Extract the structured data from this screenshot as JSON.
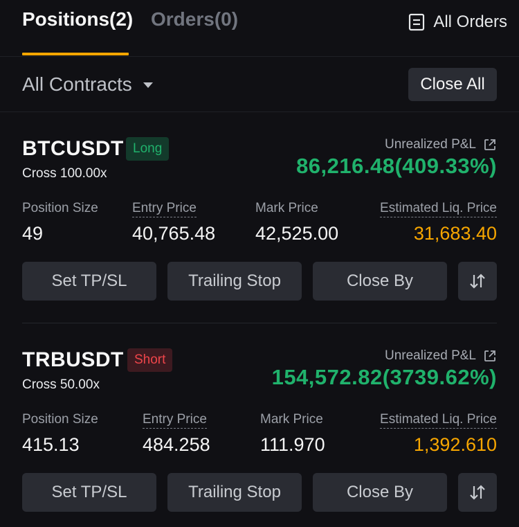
{
  "tabs": {
    "positions_label": "Positions(2)",
    "orders_label": "Orders(0)",
    "all_orders_label": "All Orders"
  },
  "filter": {
    "contracts_label": "All Contracts",
    "close_all_label": "Close All"
  },
  "labels": {
    "unrealized_pnl": "Unrealized P&L",
    "position_size": "Position Size",
    "entry_price": "Entry Price",
    "mark_price": "Mark Price",
    "est_liq_price": "Estimated Liq. Price",
    "set_tpsl": "Set TP/SL",
    "trailing_stop": "Trailing Stop",
    "close_by": "Close By"
  },
  "positions": [
    {
      "symbol": "BTCUSDT",
      "side": "Long",
      "leverage": "Cross 100.00x",
      "unrealized_pnl": "86,216.48(409.33%)",
      "position_size": "49",
      "entry_price": "40,765.48",
      "mark_price": "42,525.00",
      "liq_price": "31,683.40"
    },
    {
      "symbol": "TRBUSDT",
      "side": "Short",
      "leverage": "Cross 50.00x",
      "unrealized_pnl": "154,572.82(3739.62%)",
      "position_size": "415.13",
      "entry_price": "484.258",
      "mark_price": "111.970",
      "liq_price": "1,392.610"
    }
  ],
  "colors": {
    "accent": "#f7a600",
    "profit": "#20b26c",
    "loss": "#ef454a",
    "background": "#101014",
    "button": "#2a2c33"
  },
  "icons": {
    "all_orders": "document-list-icon",
    "external": "external-link-icon",
    "contracts_dropdown": "caret-down-icon",
    "reverse": "swap-vertical-icon"
  }
}
